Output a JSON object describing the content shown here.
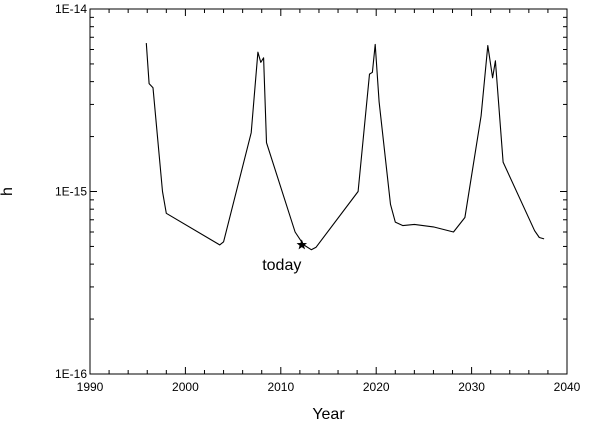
{
  "chart_data": {
    "type": "line",
    "title": "",
    "xlabel": "Year",
    "ylabel": "h",
    "xlim": [
      1990,
      2040
    ],
    "ylim": [
      1e-16,
      1e-14
    ],
    "yscale": "log",
    "grid": false,
    "legend": "none",
    "x_ticks": [
      1990,
      2000,
      2010,
      2020,
      2030,
      2040
    ],
    "x_tick_labels": [
      "1990",
      "2000",
      "2010",
      "2020",
      "2030",
      "2040"
    ],
    "y_ticks": [
      1e-16,
      1e-15,
      1e-14
    ],
    "y_tick_labels": [
      "1E-16",
      "1E-15",
      "1E-14"
    ],
    "line_color": "#000000",
    "series": [
      {
        "x": [
          1995.9,
          1996.2,
          1996.6,
          1997.6,
          1998.0,
          2003.6,
          2004.0,
          2006.9,
          2007.6,
          2007.9,
          2008.2,
          2008.5,
          2011.5,
          2012.4,
          2013.2,
          2013.7,
          2018.1,
          2019.3,
          2019.6,
          2019.9,
          2020.3,
          2021.5,
          2022.0,
          2022.8,
          2024.0,
          2026.0,
          2028.1,
          2029.3,
          2031.0,
          2031.7,
          2032.2,
          2032.5,
          2033.3,
          2036.6,
          2037.1,
          2037.6
        ],
        "y": [
          6.5e-15,
          3.9e-15,
          3.7e-15,
          1e-15,
          7.6e-16,
          5.1e-16,
          5.3e-16,
          2.1e-15,
          5.8e-15,
          5.1e-15,
          5.4e-15,
          1.85e-15,
          6e-16,
          5.1e-16,
          4.8e-16,
          4.95e-16,
          1e-15,
          4.4e-15,
          4.5e-15,
          6.4e-15,
          3.1e-15,
          8.5e-16,
          6.8e-16,
          6.5e-16,
          6.6e-16,
          6.4e-16,
          6e-16,
          7.2e-16,
          2.6e-15,
          6.3e-15,
          4.2e-15,
          5.2e-15,
          1.45e-15,
          6.1e-16,
          5.6e-16,
          5.5e-16
        ]
      }
    ],
    "marker": {
      "x": 2012.2,
      "y": 5.1e-16,
      "symbol": "star",
      "label": "today"
    }
  }
}
